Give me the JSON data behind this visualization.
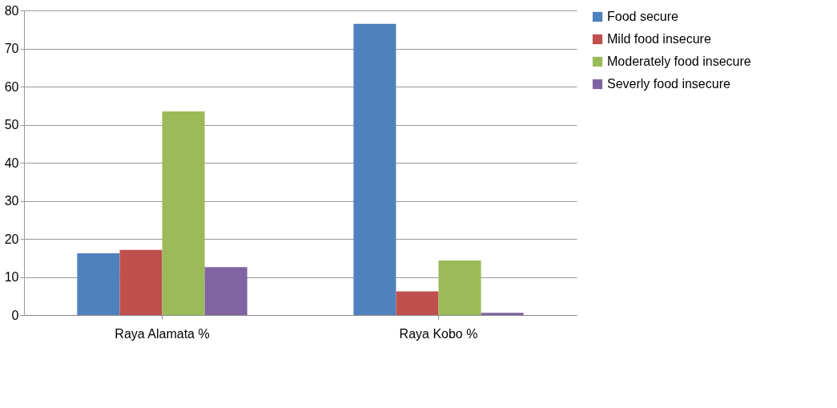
{
  "chart_data": {
    "type": "bar",
    "categories": [
      "Raya Alamata %",
      "Raya Kobo %"
    ],
    "series": [
      {
        "name": "Food secure",
        "color": "#4f81bd",
        "values": [
          16.2,
          76.5
        ]
      },
      {
        "name": "Mild food insecure",
        "color": "#c0504d",
        "values": [
          17.1,
          6.2
        ]
      },
      {
        "name": "Moderately food insecure",
        "color": "#9bbb59",
        "values": [
          53.5,
          14.3
        ]
      },
      {
        "name": "Severly food insecure",
        "color": "#8064a2",
        "values": [
          12.6,
          0.6
        ]
      }
    ],
    "ylim": [
      0,
      80
    ],
    "yticks": [
      0,
      10,
      20,
      30,
      40,
      50,
      60,
      70,
      80
    ],
    "grid": "y",
    "legend": "right"
  }
}
